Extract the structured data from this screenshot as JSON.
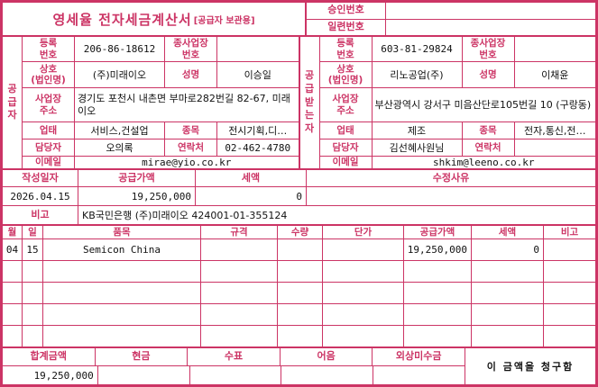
{
  "colors": {
    "accent": "#cc3465",
    "text": "#111111",
    "background": "#ffffff"
  },
  "title": {
    "main": "영세율 전자세금계산서",
    "sub": "[공급자 보관용]"
  },
  "approval": {
    "rows": [
      {
        "label": "승인번호",
        "value": ""
      },
      {
        "label": "일련번호",
        "value": ""
      }
    ]
  },
  "supplier": {
    "side_label": "공\n급\n자",
    "reg_label": "등록\n번호",
    "reg_value": "206-86-18612",
    "subreg_label": "종사업장\n번호",
    "subreg_value": "",
    "name_label": "상호\n(법인명)",
    "name_value": "(주)미래이오",
    "ceo_label": "성명",
    "ceo_value": "이승일",
    "addr_label": "사업장\n주소",
    "addr_value": "경기도 포천시 내촌면 부마로282번길 82-67, 미래이오",
    "biztype_label": "업태",
    "biztype_value": "서비스,건설업",
    "bizitem_label": "종목",
    "bizitem_value": "전시기획,디…",
    "manager_label": "담당자",
    "manager_value": "오의록",
    "phone_label": "연락처",
    "phone_value": "02-462-4780",
    "email_label": "이메일",
    "email_value": "mirae@yio.co.kr"
  },
  "buyer": {
    "side_label": "공\n급\n받\n는\n자",
    "reg_label": "등록\n번호",
    "reg_value": "603-81-29824",
    "subreg_label": "종사업장\n번호",
    "subreg_value": "",
    "name_label": "상호\n(법인명)",
    "name_value": "리노공업(주)",
    "ceo_label": "성명",
    "ceo_value": "이채윤",
    "addr_label": "사업장\n주소",
    "addr_value": "부산광역시 강서구 미음산단로105번길 10 (구랑동)",
    "biztype_label": "업태",
    "biztype_value": "제조",
    "bizitem_label": "종목",
    "bizitem_value": "전자,통신,전…",
    "manager_label": "담당자",
    "manager_value": "김선혜사원님",
    "phone_label": "연락처",
    "phone_value": "",
    "email_label": "이메일",
    "email_value": "shkim@leeno.co.kr"
  },
  "summary": {
    "date_label": "작성일자",
    "date_value": "2026.04.15",
    "supply_label": "공급가액",
    "supply_value": "19,250,000",
    "tax_label": "세액",
    "tax_value": "0",
    "reason_label": "수정사유",
    "reason_value": "",
    "note_label": "비고",
    "note_value": "KB국민은행 (주)미래이오 424001-01-355124"
  },
  "items": {
    "headers": [
      "월",
      "일",
      "품목",
      "규격",
      "수량",
      "단가",
      "공급가액",
      "세액",
      "비고"
    ],
    "rows": [
      [
        "04",
        "15",
        "Semicon China",
        "",
        "",
        "",
        "19,250,000",
        "0",
        ""
      ],
      [
        "",
        "",
        "",
        "",
        "",
        "",
        "",
        "",
        ""
      ],
      [
        "",
        "",
        "",
        "",
        "",
        "",
        "",
        "",
        ""
      ],
      [
        "",
        "",
        "",
        "",
        "",
        "",
        "",
        "",
        ""
      ],
      [
        "",
        "",
        "",
        "",
        "",
        "",
        "",
        "",
        ""
      ]
    ]
  },
  "footer": {
    "total_label": "합계금액",
    "total_value": "19,250,000",
    "cash_label": "현금",
    "cash_value": "",
    "check_label": "수표",
    "check_value": "",
    "bill_label": "어음",
    "bill_value": "",
    "credit_label": "외상미수금",
    "credit_value": "",
    "message": "이 금액을 청구함"
  }
}
